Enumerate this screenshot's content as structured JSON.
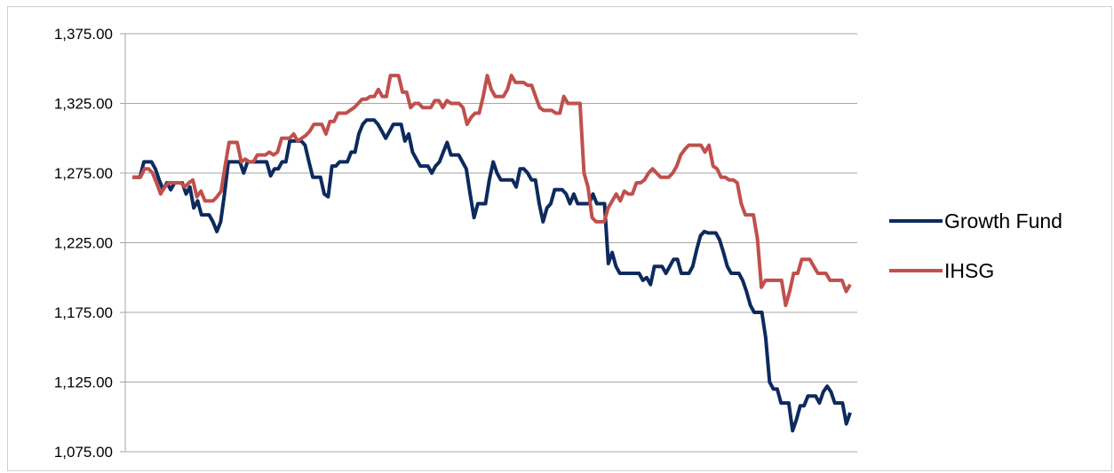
{
  "chart_data": {
    "type": "line",
    "title": "",
    "xlabel": "",
    "ylabel": "",
    "ylim": [
      1075,
      1375
    ],
    "yticks": [
      1075,
      1125,
      1175,
      1225,
      1275,
      1325,
      1375
    ],
    "ytick_labels": [
      "1,075.00",
      "1,125.00",
      "1,175.00",
      "1,225.00",
      "1,275.00",
      "1,325.00",
      "1,375.00"
    ],
    "grid": true,
    "legend_position": "right",
    "series": [
      {
        "name": "Growth Fund",
        "color": "#0d2a5e",
        "values": [
          1272,
          1272,
          1272,
          1283,
          1283,
          1283,
          1278,
          1270,
          1263,
          1268,
          1263,
          1268,
          1268,
          1268,
          1260,
          1265,
          1250,
          1255,
          1245,
          1245,
          1245,
          1240,
          1233,
          1240,
          1260,
          1283,
          1283,
          1283,
          1283,
          1275,
          1283,
          1283,
          1283,
          1283,
          1283,
          1283,
          1273,
          1278,
          1278,
          1283,
          1283,
          1298,
          1298,
          1298,
          1298,
          1295,
          1283,
          1272,
          1272,
          1272,
          1260,
          1258,
          1280,
          1280,
          1283,
          1283,
          1283,
          1290,
          1290,
          1303,
          1310,
          1313,
          1313,
          1313,
          1310,
          1305,
          1300,
          1305,
          1310,
          1310,
          1310,
          1298,
          1303,
          1290,
          1285,
          1280,
          1280,
          1280,
          1275,
          1280,
          1283,
          1290,
          1297,
          1288,
          1288,
          1288,
          1283,
          1278,
          1260,
          1243,
          1253,
          1253,
          1253,
          1270,
          1283,
          1275,
          1270,
          1270,
          1270,
          1270,
          1265,
          1278,
          1278,
          1275,
          1270,
          1270,
          1253,
          1240,
          1250,
          1253,
          1263,
          1263,
          1263,
          1260,
          1253,
          1260,
          1253,
          1253,
          1253,
          1253,
          1260,
          1253,
          1253,
          1253,
          1210,
          1218,
          1208,
          1203,
          1203,
          1203,
          1203,
          1203,
          1203,
          1198,
          1200,
          1195,
          1208,
          1208,
          1208,
          1203,
          1208,
          1213,
          1213,
          1203,
          1203,
          1203,
          1208,
          1220,
          1230,
          1233,
          1232,
          1232,
          1232,
          1227,
          1218,
          1208,
          1203,
          1203,
          1203,
          1198,
          1190,
          1180,
          1175,
          1175,
          1175,
          1157,
          1125,
          1120,
          1120,
          1110,
          1110,
          1110,
          1090,
          1098,
          1108,
          1108,
          1115,
          1115,
          1115,
          1110,
          1118,
          1122,
          1118,
          1110,
          1110,
          1110,
          1095,
          1103
        ]
      },
      {
        "name": "IHSG",
        "color": "#c0504d",
        "values": [
          1272,
          1272,
          1272,
          1278,
          1278,
          1275,
          1268,
          1260,
          1265,
          1268,
          1268,
          1268,
          1268,
          1265,
          1268,
          1270,
          1258,
          1262,
          1255,
          1255,
          1255,
          1258,
          1262,
          1280,
          1297,
          1297,
          1297,
          1283,
          1285,
          1283,
          1283,
          1288,
          1288,
          1288,
          1290,
          1288,
          1290,
          1300,
          1300,
          1300,
          1303,
          1298,
          1300,
          1302,
          1305,
          1310,
          1310,
          1310,
          1303,
          1312,
          1312,
          1318,
          1318,
          1318,
          1320,
          1322,
          1325,
          1328,
          1328,
          1330,
          1330,
          1335,
          1330,
          1330,
          1345,
          1345,
          1345,
          1333,
          1333,
          1322,
          1325,
          1325,
          1322,
          1322,
          1322,
          1327,
          1327,
          1322,
          1327,
          1325,
          1325,
          1325,
          1322,
          1310,
          1315,
          1318,
          1318,
          1330,
          1345,
          1335,
          1330,
          1330,
          1330,
          1335,
          1345,
          1340,
          1340,
          1340,
          1338,
          1338,
          1330,
          1322,
          1320,
          1320,
          1320,
          1318,
          1318,
          1330,
          1325,
          1325,
          1325,
          1325,
          1275,
          1265,
          1243,
          1240,
          1240,
          1240,
          1250,
          1255,
          1260,
          1255,
          1262,
          1260,
          1260,
          1268,
          1268,
          1270,
          1275,
          1278,
          1275,
          1272,
          1272,
          1272,
          1275,
          1280,
          1288,
          1292,
          1295,
          1295,
          1295,
          1295,
          1290,
          1295,
          1280,
          1278,
          1272,
          1272,
          1270,
          1270,
          1268,
          1253,
          1245,
          1245,
          1245,
          1228,
          1193,
          1198,
          1198,
          1198,
          1198,
          1198,
          1180,
          1190,
          1203,
          1203,
          1213,
          1213,
          1213,
          1208,
          1203,
          1203,
          1203,
          1198,
          1198,
          1198,
          1198,
          1190,
          1195
        ]
      }
    ]
  }
}
